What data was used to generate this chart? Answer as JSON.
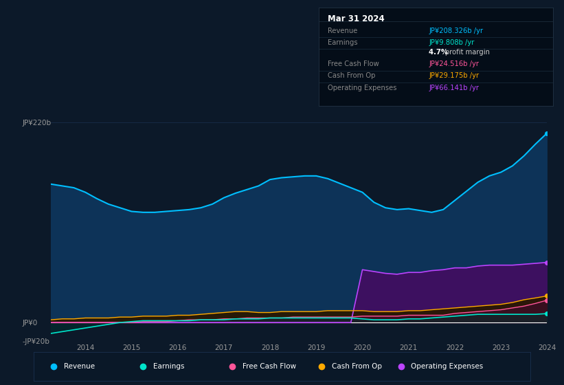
{
  "bg_color": "#0c1929",
  "plot_bg_color": "#0c1929",
  "grid_color": "#1a3050",
  "title_box": {
    "date": "Mar 31 2024",
    "rows": [
      {
        "label": "Revenue",
        "value": "JP¥208.326b /yr",
        "value_color": "#00bfff"
      },
      {
        "label": "Earnings",
        "value": "JP¥9.808b /yr",
        "value_color": "#00e5cc"
      },
      {
        "label": "",
        "value": "4.7% profit margin",
        "value_color": "#dddddd"
      },
      {
        "label": "Free Cash Flow",
        "value": "JP¥24.516b /yr",
        "value_color": "#ff5599"
      },
      {
        "label": "Cash From Op",
        "value": "JP¥29.175b /yr",
        "value_color": "#ffaa00"
      },
      {
        "label": "Operating Expenses",
        "value": "JP¥66.141b /yr",
        "value_color": "#bb44ff"
      }
    ]
  },
  "years": [
    2013.25,
    2013.5,
    2013.75,
    2014.0,
    2014.25,
    2014.5,
    2014.75,
    2015.0,
    2015.25,
    2015.5,
    2015.75,
    2016.0,
    2016.25,
    2016.5,
    2016.75,
    2017.0,
    2017.25,
    2017.5,
    2017.75,
    2018.0,
    2018.25,
    2018.5,
    2018.75,
    2019.0,
    2019.25,
    2019.5,
    2019.75,
    2020.0,
    2020.25,
    2020.5,
    2020.75,
    2021.0,
    2021.25,
    2021.5,
    2021.75,
    2022.0,
    2022.25,
    2022.5,
    2022.75,
    2023.0,
    2023.25,
    2023.5,
    2023.75,
    2024.0
  ],
  "revenue": [
    152,
    150,
    148,
    143,
    136,
    130,
    126,
    122,
    121,
    121,
    122,
    123,
    124,
    126,
    130,
    137,
    142,
    146,
    150,
    157,
    159,
    160,
    161,
    161,
    158,
    153,
    148,
    143,
    132,
    126,
    124,
    125,
    123,
    121,
    124,
    134,
    144,
    154,
    161,
    165,
    172,
    183,
    196,
    208
  ],
  "earnings": [
    -12,
    -10,
    -8,
    -6,
    -4,
    -2,
    0,
    1,
    2,
    2,
    2,
    2,
    2,
    3,
    3,
    3,
    4,
    4,
    4,
    5,
    5,
    5,
    5,
    5,
    5,
    5,
    5,
    4,
    3,
    3,
    3,
    4,
    4,
    5,
    6,
    7,
    8,
    9,
    9,
    9,
    9,
    9,
    9,
    9.8
  ],
  "free_cash_flow": [
    0,
    0,
    0,
    0,
    0,
    0,
    0,
    0,
    1,
    1,
    1,
    2,
    3,
    3,
    3,
    4,
    4,
    5,
    5,
    5,
    5,
    6,
    6,
    6,
    6,
    6,
    6,
    7,
    7,
    7,
    7,
    8,
    8,
    8,
    8,
    10,
    11,
    12,
    13,
    14,
    16,
    18,
    21,
    24.5
  ],
  "cash_from_op": [
    3,
    4,
    4,
    5,
    5,
    5,
    6,
    6,
    7,
    7,
    7,
    8,
    8,
    9,
    10,
    11,
    12,
    12,
    11,
    11,
    12,
    12,
    12,
    12,
    13,
    13,
    13,
    13,
    12,
    12,
    12,
    13,
    13,
    14,
    15,
    16,
    17,
    18,
    19,
    20,
    22,
    25,
    27,
    29.2
  ],
  "operating_expenses": [
    0,
    0,
    0,
    0,
    0,
    0,
    0,
    0,
    0,
    0,
    0,
    0,
    0,
    0,
    0,
    0,
    0,
    0,
    0,
    0,
    0,
    0,
    0,
    0,
    0,
    0,
    0,
    58,
    56,
    54,
    53,
    55,
    55,
    57,
    58,
    60,
    60,
    62,
    63,
    63,
    63,
    64,
    65,
    66
  ],
  "revenue_color": "#00bfff",
  "revenue_fill": "#0d3358",
  "earnings_color": "#00e5cc",
  "earnings_fill": "#003030",
  "free_cash_flow_color": "#ff5599",
  "free_cash_flow_fill": "#3a0f22",
  "cash_from_op_color": "#ffaa00",
  "cash_from_op_fill": "#2a1800",
  "operating_expenses_color": "#bb44ff",
  "operating_expenses_fill": "#3d1060",
  "ylim": [
    -20,
    240
  ],
  "yticks": [
    -20,
    0,
    220
  ],
  "ytick_labels": [
    "-JP¥20b",
    "JP¥0",
    "JP¥220b"
  ],
  "xtick_years": [
    2014,
    2015,
    2016,
    2017,
    2018,
    2019,
    2020,
    2021,
    2022,
    2023,
    2024
  ],
  "legend_items": [
    {
      "label": "Revenue",
      "color": "#00bfff"
    },
    {
      "label": "Earnings",
      "color": "#00e5cc"
    },
    {
      "label": "Free Cash Flow",
      "color": "#ff5599"
    },
    {
      "label": "Cash From Op",
      "color": "#ffaa00"
    },
    {
      "label": "Operating Expenses",
      "color": "#bb44ff"
    }
  ]
}
